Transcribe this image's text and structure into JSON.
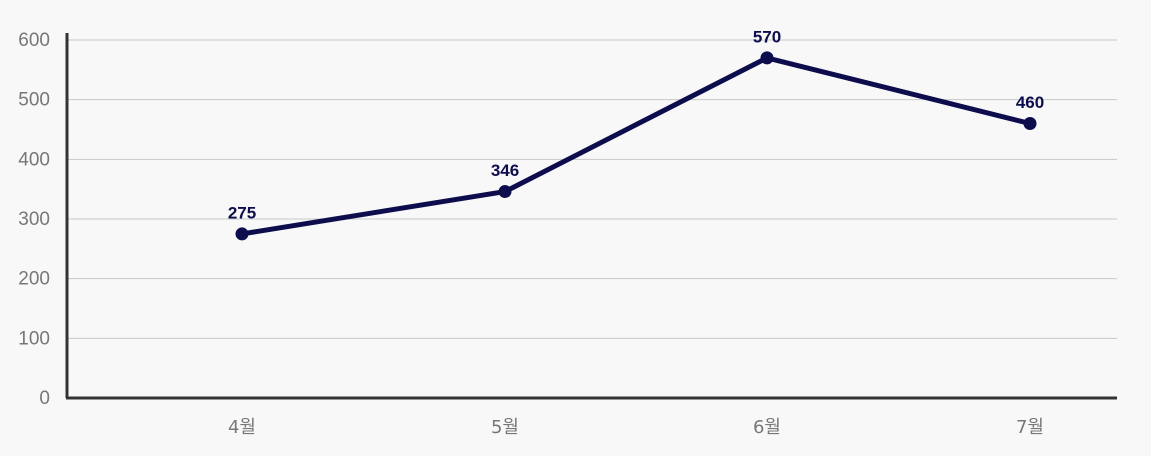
{
  "chart_data": {
    "type": "line",
    "categories": [
      "4월",
      "5월",
      "6월",
      "7월"
    ],
    "series": [
      {
        "values": [
          275,
          346,
          570,
          460
        ]
      }
    ],
    "title": "",
    "xlabel": "",
    "ylabel": "",
    "ylim": [
      0,
      600
    ],
    "yticks": [
      0,
      100,
      200,
      300,
      400,
      500,
      600
    ],
    "grid": true,
    "data_labels": true,
    "colors": {
      "line": "#0d0d4d",
      "grid": "#c8c8c8",
      "axis": "#333333",
      "tick_text": "#777777",
      "background": "#f8f8f8"
    }
  }
}
